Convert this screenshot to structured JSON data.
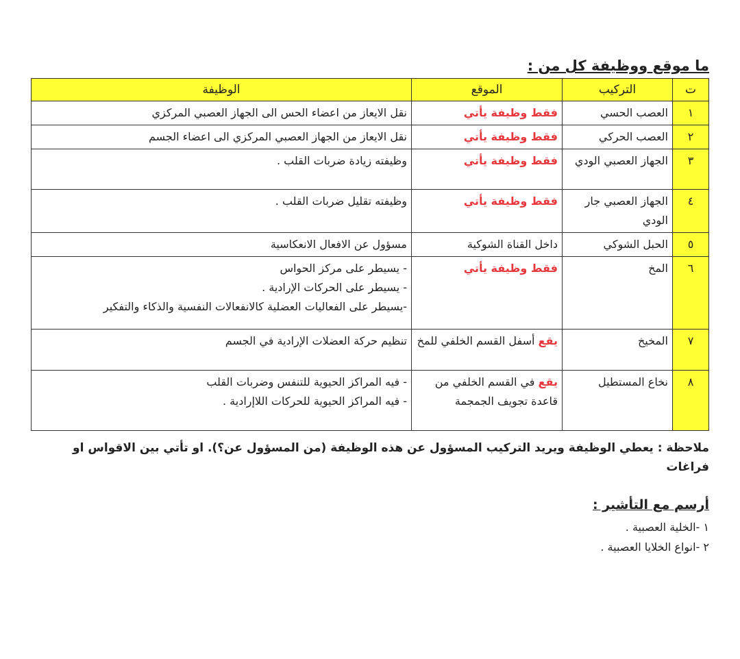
{
  "title": "ما موقع ووظيفة كل من :",
  "table": {
    "headers": {
      "num": "ت",
      "structure": "التركيب",
      "location": "الموقع",
      "function": "الوظيفة"
    },
    "rows": [
      {
        "num": "١",
        "structure": "العصب الحسي",
        "location_highlight": "فقط وظيفة يأتي",
        "location": "",
        "function": [
          "نقل الايعاز من اعضاء الحس الى الجهاز العصبي المركزي"
        ]
      },
      {
        "num": "٢",
        "structure": "العصب الحركي",
        "location_highlight": "فقط وظيفة يأتي",
        "location": "",
        "function": [
          "نقل الايعاز من الجهاز العصبي المركزي الى اعضاء الجسم"
        ]
      },
      {
        "num": "٣",
        "structure": "الجهاز العصبي الودي",
        "location_highlight": "فقط وظيفة يأتي",
        "location": "",
        "function": [
          "وظيفته زيادة ضربات القلب ."
        ]
      },
      {
        "num": "٤",
        "structure": "الجهاز العصبي جار الودي",
        "location_highlight": "فقط وظيفة يأتي",
        "location": "",
        "function": [
          "وظيفته تقليل ضربات القلب ."
        ]
      },
      {
        "num": "٥",
        "structure": "الحبل الشوكي",
        "location_highlight": "",
        "location": "داخل القناة الشوكية",
        "function": [
          "مسؤول عن الافعال الانعكاسية"
        ]
      },
      {
        "num": "٦",
        "structure": "المخ",
        "location_highlight": "فقط وظيفة يأتي",
        "location": "",
        "function": [
          "- يسيطر على مركز الحواس",
          "- يسيطر على الحركات الإرادية .",
          "-يسيطر على الفعاليات العضلية كالانفعالات النفسية والذكاء والتفكير"
        ]
      },
      {
        "num": "٧",
        "structure": "المخيخ",
        "location_highlight": "يقع",
        "location": "أسفل القسم الخلفي للمخ",
        "function": [
          "تنظيم حركة العضلات الإرادية في الجسم"
        ]
      },
      {
        "num": "٨",
        "structure": "نخاع المستطيل",
        "location_highlight": "يقع",
        "location": "في القسم الخلفي من قاعدة تجويف الجمجمة",
        "function": [
          "- فيه المراكز الحيوية للتنفس وضربات القلب",
          "- فيه المراكز الحيوية للحركات اللاإرادية ."
        ]
      }
    ]
  },
  "note": "ملاحظة : يعطي الوظيفة ويريد التركيب المسؤول عن هذه الوظيفة (من المسؤول عن؟). او تأتي بين الاقواس او فراغات",
  "drawing": {
    "heading": "أرسم مع التأشير :",
    "items": [
      "١ -الخلية العصبية .",
      "٢ -انواع الخلايا العصبية ."
    ]
  },
  "colors": {
    "header_bg": "#ffff33",
    "highlight": "#e8383d"
  }
}
